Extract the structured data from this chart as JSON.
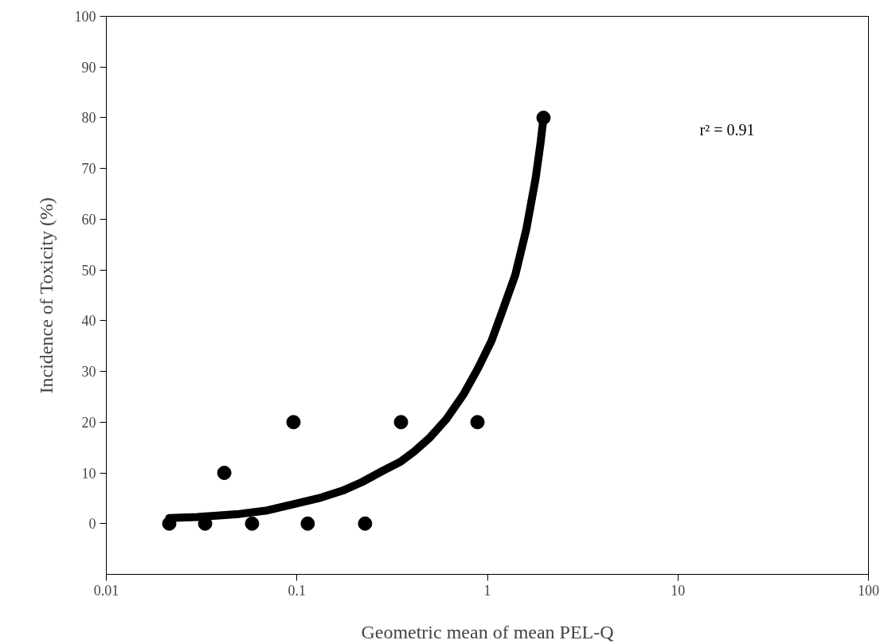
{
  "chart_data": {
    "type": "scatter",
    "xlabel": "Geometric mean of mean PEL-Q",
    "ylabel": "Incidence of Toxicity (%)",
    "log": "x",
    "xlim": [
      0.01,
      100
    ],
    "xticks": [
      0.01,
      0.1,
      1,
      10,
      100
    ],
    "ylim": [
      -10,
      100
    ],
    "yticks": [
      0,
      10,
      20,
      30,
      40,
      50,
      60,
      70,
      80,
      90,
      100
    ],
    "annotations": [
      "r² = 0.91"
    ],
    "series": [
      {
        "color": "#000000",
        "marker": "circle",
        "x": [
          0.0214,
          0.033,
          0.0416,
          0.0582,
          0.096,
          0.114,
          0.228,
          0.352,
          0.887,
          1.97
        ],
        "values": [
          0,
          0,
          10,
          0,
          20,
          0,
          0,
          20,
          20,
          80
        ]
      },
      {
        "type": "line",
        "color": "#000000",
        "line_style": "solid",
        "x": [
          0.0214,
          0.03,
          0.0499,
          0.07,
          0.1,
          0.13,
          0.174,
          0.22,
          0.282,
          0.35,
          0.415,
          0.5,
          0.609,
          0.75,
          0.895,
          1.05,
          1.19,
          1.4,
          1.6,
          1.79,
          1.9,
          1.97
        ],
        "values": [
          1.1,
          1.3,
          1.9,
          2.6,
          4.0,
          5.0,
          6.5,
          8.2,
          10.4,
          12.2,
          14.3,
          17,
          20.6,
          25.5,
          30.7,
          36,
          41.6,
          49,
          58,
          68,
          75,
          80
        ]
      }
    ]
  }
}
